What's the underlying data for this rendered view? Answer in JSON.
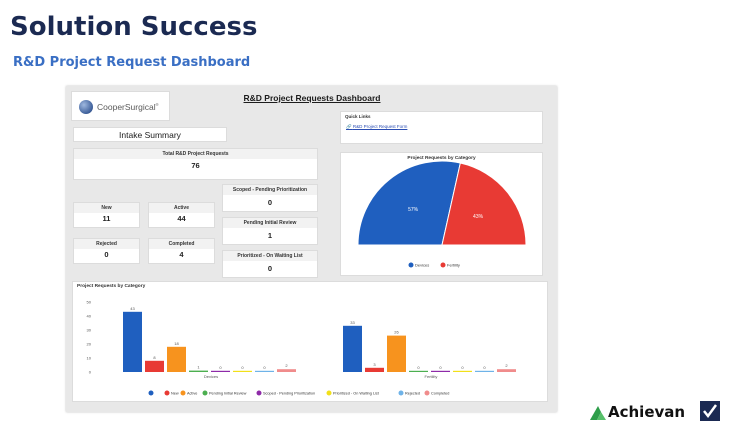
{
  "slide": {
    "title": "Solution Success",
    "subtitle": "R&D Project Request Dashboard"
  },
  "dashboard": {
    "logo_text": "CooperSurgical",
    "logo_mark": "®",
    "title": "R&D Project Requests Dashboard",
    "intake_summary_title": "Intake Summary",
    "kpis": {
      "total": {
        "label": "Total R&D Project Requests",
        "value": "76"
      },
      "new": {
        "label": "New",
        "value": "11"
      },
      "active": {
        "label": "Active",
        "value": "44"
      },
      "rejected": {
        "label": "Rejected",
        "value": "0"
      },
      "completed": {
        "label": "Completed",
        "value": "4"
      },
      "scoped": {
        "label": "Scoped - Pending Prioritization",
        "value": "0"
      },
      "pending": {
        "label": "Pending Initial Review",
        "value": "1"
      },
      "prioritized": {
        "label": "Prioritized - On Waiting List",
        "value": "0"
      }
    },
    "quick_links": {
      "title": "Quick Links",
      "link_label": "R&D Project Request Form"
    }
  },
  "colors": {
    "devices": "#1f5fbf",
    "fertility": "#e83a34",
    "new": "#e83a34",
    "active": "#f7931e",
    "pending_initial_review": "#4caf50",
    "scoped_pending_prioritization": "#8e2aa8",
    "prioritized_on_waiting_list": "#f2e01a",
    "rejected": "#6fb3e8",
    "completed": "#f08c8c"
  },
  "chart_data": [
    {
      "type": "pie",
      "variant": "half-donut",
      "title": "Project Requests by Category",
      "slices": [
        {
          "name": "Devices",
          "value": 57,
          "label": "57%"
        },
        {
          "name": "Fertility",
          "value": 43,
          "label": "43%"
        }
      ],
      "legend_position": "bottom"
    },
    {
      "type": "bar",
      "title": "Project Requests by Category",
      "categories": [
        "Devices",
        "Fertility"
      ],
      "ylim": [
        0,
        50
      ],
      "yticks": [
        0,
        10,
        20,
        30,
        40,
        50
      ],
      "grid": false,
      "legend_position": "bottom",
      "series": [
        {
          "name": "",
          "values": [
            43,
            33
          ]
        },
        {
          "name": "New",
          "values": [
            8,
            3
          ]
        },
        {
          "name": "Active",
          "values": [
            18,
            26
          ]
        },
        {
          "name": "Pending Initial Review",
          "values": [
            1,
            0
          ]
        },
        {
          "name": "Scoped - Pending Prioritization",
          "values": [
            0,
            0
          ]
        },
        {
          "name": "Prioritized - On Waiting List",
          "values": [
            0,
            0
          ]
        },
        {
          "name": "Rejected",
          "values": [
            0,
            0
          ]
        },
        {
          "name": "Completed",
          "values": [
            2,
            2
          ]
        }
      ],
      "series_colors": [
        "#1f5fbf",
        "#e83a34",
        "#f7931e",
        "#4caf50",
        "#8e2aa8",
        "#f2e01a",
        "#6fb3e8",
        "#f08c8c"
      ]
    }
  ],
  "branding": {
    "name": "Achievan"
  }
}
